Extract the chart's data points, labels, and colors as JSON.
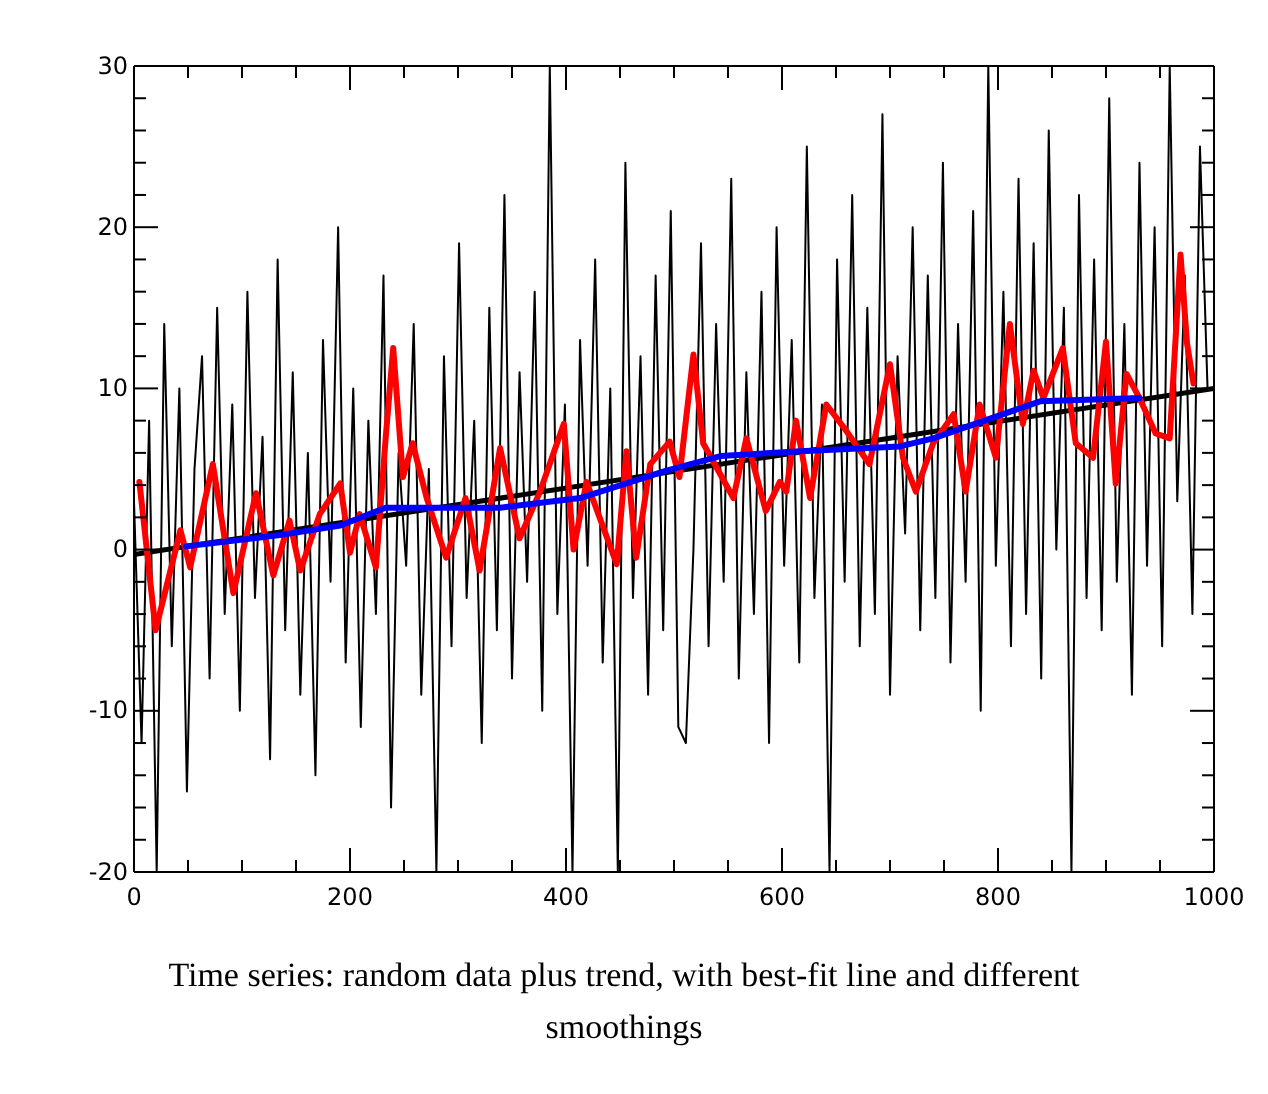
{
  "chart_data": {
    "type": "line",
    "xlim": [
      0,
      1000
    ],
    "ylim": [
      -20,
      30
    ],
    "xticks": [
      0,
      {
        "value": 50,
        "label": null
      },
      {
        "value": 100,
        "label": null
      },
      {
        "value": 150,
        "label": null
      },
      200,
      {
        "value": 250,
        "label": null
      },
      {
        "value": 300,
        "label": null
      },
      {
        "value": 350,
        "label": null
      },
      400,
      {
        "value": 450,
        "label": null
      },
      {
        "value": 500,
        "label": null
      },
      {
        "value": 550,
        "label": null
      },
      600,
      {
        "value": 650,
        "label": null
      },
      {
        "value": 700,
        "label": null
      },
      {
        "value": 750,
        "label": null
      },
      800,
      {
        "value": 850,
        "label": null
      },
      {
        "value": 900,
        "label": null
      },
      {
        "value": 950,
        "label": null
      },
      1000
    ],
    "yticks": [
      -20,
      {
        "value": -18,
        "label": null
      },
      {
        "value": -16,
        "label": null
      },
      {
        "value": -14,
        "label": null
      },
      {
        "value": -12,
        "label": null
      },
      -10,
      {
        "value": -8,
        "label": null
      },
      {
        "value": -6,
        "label": null
      },
      {
        "value": -4,
        "label": null
      },
      {
        "value": -2,
        "label": null
      },
      0,
      {
        "value": 2,
        "label": null
      },
      {
        "value": 4,
        "label": null
      },
      {
        "value": 6,
        "label": null
      },
      {
        "value": 8,
        "label": null
      },
      10,
      {
        "value": 12,
        "label": null
      },
      {
        "value": 14,
        "label": null
      },
      {
        "value": 16,
        "label": null
      },
      {
        "value": 18,
        "label": null
      },
      20,
      {
        "value": 22,
        "label": null
      },
      {
        "value": 24,
        "label": null
      },
      {
        "value": 26,
        "label": null
      },
      {
        "value": 28,
        "label": null
      },
      30
    ],
    "grid": false,
    "marker": "none",
    "line_style": "solid",
    "annotations": [
      "Time series: random data plus trend, with best-fit line and different smoothings"
    ],
    "series": [
      {
        "color": "#000000",
        "x": [
          0,
          7,
          14,
          21,
          28,
          35,
          42,
          49,
          56,
          63,
          70,
          77,
          84,
          91,
          98,
          105,
          112,
          119,
          126,
          133,
          140,
          147,
          154,
          161,
          168,
          175,
          182,
          189,
          196,
          203,
          210,
          217,
          224,
          231,
          238,
          245,
          252,
          259,
          266,
          273,
          280,
          287,
          294,
          301,
          308,
          315,
          322,
          329,
          336,
          343,
          350,
          357,
          364,
          371,
          378,
          385,
          392,
          399,
          406,
          413,
          420,
          427,
          434,
          441,
          448,
          455,
          462,
          469,
          476,
          483,
          490,
          497,
          504,
          511,
          518,
          525,
          532,
          539,
          546,
          553,
          560,
          567,
          574,
          581,
          588,
          595,
          602,
          609,
          616,
          623,
          630,
          637,
          644,
          651,
          658,
          665,
          672,
          679,
          686,
          693,
          700,
          707,
          714,
          721,
          728,
          735,
          742,
          749,
          756,
          763,
          770,
          777,
          784,
          791,
          798,
          805,
          812,
          819,
          826,
          833,
          840,
          847,
          854,
          861,
          868,
          875,
          882,
          889,
          896,
          903,
          910,
          917,
          924,
          931,
          938,
          945,
          952,
          959,
          966,
          973,
          980,
          987,
          994
        ],
        "values": [
          3,
          -12,
          8,
          -20,
          14,
          -6,
          10,
          -15,
          5,
          12,
          -8,
          15,
          -4,
          9,
          -10,
          16,
          -3,
          7,
          -13,
          18,
          -5,
          11,
          -9,
          6,
          -14,
          13,
          -2,
          20,
          -7,
          10,
          -11,
          8,
          -4,
          17,
          -16,
          6,
          -1,
          14,
          -9,
          5,
          -20,
          12,
          -6,
          19,
          -3,
          8,
          -12,
          15,
          -5,
          22,
          -8,
          11,
          -2,
          16,
          -10,
          30,
          -4,
          9,
          -20,
          13,
          -1,
          18,
          -7,
          10,
          -20,
          24,
          -3,
          12,
          -9,
          17,
          -5,
          21,
          -11,
          -12,
          0,
          19,
          -6,
          14,
          -2,
          23,
          -8,
          11,
          -4,
          16,
          -12,
          20,
          -1,
          13,
          -7,
          25,
          -3,
          9,
          -20,
          18,
          -2,
          22,
          -6,
          15,
          -4,
          27,
          -9,
          12,
          1,
          20,
          -5,
          17,
          -3,
          24,
          -7,
          14,
          -2,
          21,
          -10,
          30,
          -1,
          16,
          -6,
          23,
          -4,
          19,
          -8,
          26,
          0,
          15,
          -20,
          22,
          -3,
          18,
          -5,
          28,
          -2,
          14,
          -9,
          24,
          -1,
          20,
          -6,
          30,
          3,
          17,
          -4,
          25,
          10
        ]
      },
      {
        "color": "#000000",
        "x": [
          0,
          1000
        ],
        "values": [
          -0.3,
          10
        ]
      },
      {
        "color": "#ff0000",
        "x": [
          5,
          20,
          43,
          52,
          73,
          92,
          113,
          129,
          144,
          154,
          172,
          191,
          200,
          209,
          224,
          233,
          240,
          249,
          258,
          271,
          289,
          307,
          320,
          339,
          357,
          376,
          398,
          407,
          419,
          447,
          456,
          465,
          478,
          496,
          505,
          518,
          527,
          555,
          567,
          585,
          598,
          604,
          613,
          626,
          641,
          657,
          681,
          700,
          712,
          724,
          740,
          759,
          770,
          783,
          798,
          811,
          823,
          833,
          842,
          860,
          872,
          888,
          900,
          909,
          919,
          931,
          946,
          959,
          969,
          975,
          981
        ],
        "values": [
          4.2,
          -5,
          1.2,
          -1.1,
          5.3,
          -2.7,
          3.5,
          -1.6,
          1.8,
          -1.3,
          2.2,
          4.1,
          -0.2,
          2.2,
          -1.1,
          6.9,
          12.5,
          4.5,
          6.6,
          3.2,
          -0.5,
          3.2,
          -1.3,
          6.3,
          0.7,
          3.6,
          7.8,
          0,
          4.2,
          -0.9,
          6.1,
          -0.5,
          5.3,
          6.7,
          4.5,
          12.1,
          6.6,
          3.2,
          6.9,
          2.4,
          4.2,
          3.6,
          8,
          3.2,
          9,
          7.6,
          5.3,
          11.5,
          5.7,
          3.6,
          6.6,
          8.4,
          3.6,
          9,
          5.7,
          14,
          7.8,
          11.1,
          9.4,
          12.5,
          6.6,
          5.7,
          12.9,
          4.1,
          10.9,
          9.4,
          7.2,
          6.9,
          18.3,
          12.8,
          10.3
        ]
      },
      {
        "color": "#0000ff",
        "x": [
          48,
          135,
          191,
          233,
          339,
          413,
          493,
          543,
          617,
          709,
          740,
          839,
          931
        ],
        "values": [
          0.2,
          0.9,
          1.5,
          2.6,
          2.6,
          3.2,
          4.9,
          5.8,
          6.1,
          6.4,
          6.9,
          9.2,
          9.4
        ]
      }
    ]
  }
}
